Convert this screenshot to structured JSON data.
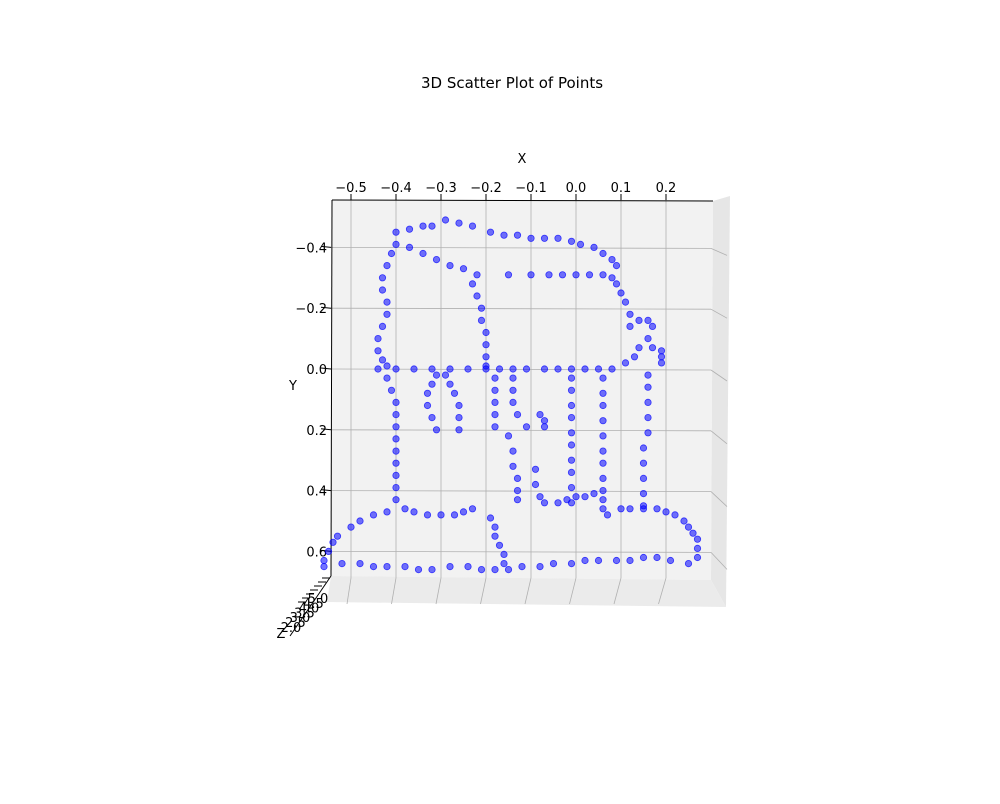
{
  "chart_data": {
    "type": "scatter",
    "title": "3D Scatter Plot of Points",
    "xlabel": "X",
    "ylabel": "Y",
    "zlabel": "Z",
    "x_ticks": [
      "−0.5",
      "−0.4",
      "−0.3",
      "−0.2",
      "−0.1",
      "0.0",
      "0.1",
      "0.2"
    ],
    "y_ticks": [
      "−0.4",
      "−0.2",
      "0.0",
      "0.2",
      "0.4",
      "0.6"
    ],
    "z_ticks": [
      "5.0",
      "4.5",
      "4.0",
      "3.5",
      "3.0",
      "2.5",
      "2.0"
    ],
    "xlim": [
      -0.55,
      0.3
    ],
    "ylim": [
      -0.5,
      0.68
    ],
    "zlim": [
      2.0,
      5.0
    ],
    "y_inverted": true,
    "grid": true,
    "point_color": "#0000ff",
    "series": [
      {
        "points": [
          [
            -0.4,
            -0.45
          ],
          [
            -0.37,
            -0.46
          ],
          [
            -0.34,
            -0.47
          ],
          [
            -0.32,
            -0.47
          ],
          [
            -0.29,
            -0.49
          ],
          [
            -0.26,
            -0.48
          ],
          [
            -0.23,
            -0.47
          ],
          [
            -0.19,
            -0.45
          ],
          [
            -0.16,
            -0.44
          ],
          [
            -0.13,
            -0.44
          ],
          [
            -0.1,
            -0.43
          ],
          [
            -0.07,
            -0.43
          ],
          [
            -0.04,
            -0.43
          ],
          [
            -0.01,
            -0.42
          ],
          [
            0.01,
            -0.41
          ],
          [
            0.04,
            -0.4
          ],
          [
            0.06,
            -0.38
          ],
          [
            0.08,
            -0.36
          ],
          [
            0.09,
            -0.34
          ],
          [
            -0.4,
            -0.41
          ],
          [
            -0.41,
            -0.38
          ],
          [
            -0.42,
            -0.34
          ],
          [
            -0.43,
            -0.3
          ],
          [
            -0.43,
            -0.26
          ],
          [
            -0.42,
            -0.22
          ],
          [
            -0.42,
            -0.18
          ],
          [
            -0.43,
            -0.14
          ],
          [
            -0.44,
            -0.1
          ],
          [
            -0.44,
            -0.06
          ],
          [
            -0.43,
            -0.03
          ],
          [
            -0.42,
            -0.01
          ],
          [
            -0.37,
            -0.4
          ],
          [
            -0.34,
            -0.38
          ],
          [
            -0.31,
            -0.36
          ],
          [
            -0.28,
            -0.34
          ],
          [
            -0.25,
            -0.33
          ],
          [
            -0.22,
            -0.31
          ],
          [
            -0.15,
            -0.31
          ],
          [
            -0.1,
            -0.31
          ],
          [
            -0.06,
            -0.31
          ],
          [
            -0.03,
            -0.31
          ],
          [
            0.0,
            -0.31
          ],
          [
            0.03,
            -0.31
          ],
          [
            0.06,
            -0.31
          ],
          [
            0.08,
            -0.3
          ],
          [
            -0.23,
            -0.28
          ],
          [
            -0.22,
            -0.24
          ],
          [
            -0.21,
            -0.2
          ],
          [
            -0.21,
            -0.16
          ],
          [
            -0.2,
            -0.12
          ],
          [
            -0.2,
            -0.08
          ],
          [
            -0.2,
            -0.04
          ],
          [
            -0.2,
            -0.01
          ],
          [
            0.09,
            -0.28
          ],
          [
            0.1,
            -0.25
          ],
          [
            0.11,
            -0.22
          ],
          [
            0.12,
            -0.18
          ],
          [
            0.12,
            -0.14
          ],
          [
            0.14,
            -0.16
          ],
          [
            0.16,
            -0.16
          ],
          [
            0.17,
            -0.14
          ],
          [
            0.16,
            -0.1
          ],
          [
            0.14,
            -0.07
          ],
          [
            0.17,
            -0.07
          ],
          [
            0.19,
            -0.06
          ],
          [
            0.19,
            -0.04
          ],
          [
            0.19,
            -0.02
          ],
          [
            -0.44,
            0.0
          ],
          [
            -0.4,
            0.0
          ],
          [
            -0.36,
            0.0
          ],
          [
            -0.32,
            0.0
          ],
          [
            -0.28,
            0.0
          ],
          [
            -0.24,
            0.0
          ],
          [
            -0.2,
            0.0
          ],
          [
            -0.17,
            0.0
          ],
          [
            -0.14,
            0.0
          ],
          [
            -0.11,
            0.0
          ],
          [
            -0.07,
            0.0
          ],
          [
            -0.04,
            0.0
          ],
          [
            -0.01,
            0.0
          ],
          [
            0.02,
            0.0
          ],
          [
            0.05,
            0.0
          ],
          [
            0.08,
            0.0
          ],
          [
            0.11,
            -0.02
          ],
          [
            0.13,
            -0.04
          ],
          [
            -0.42,
            0.03
          ],
          [
            -0.41,
            0.07
          ],
          [
            -0.4,
            0.11
          ],
          [
            -0.4,
            0.15
          ],
          [
            -0.4,
            0.19
          ],
          [
            -0.4,
            0.23
          ],
          [
            -0.4,
            0.27
          ],
          [
            -0.4,
            0.31
          ],
          [
            -0.4,
            0.35
          ],
          [
            -0.4,
            0.39
          ],
          [
            -0.4,
            0.43
          ],
          [
            -0.31,
            0.02
          ],
          [
            -0.32,
            0.05
          ],
          [
            -0.33,
            0.08
          ],
          [
            -0.33,
            0.12
          ],
          [
            -0.32,
            0.16
          ],
          [
            -0.31,
            0.2
          ],
          [
            -0.29,
            0.02
          ],
          [
            -0.28,
            0.05
          ],
          [
            -0.27,
            0.08
          ],
          [
            -0.26,
            0.12
          ],
          [
            -0.26,
            0.16
          ],
          [
            -0.26,
            0.2
          ],
          [
            -0.18,
            0.03
          ],
          [
            -0.18,
            0.07
          ],
          [
            -0.18,
            0.11
          ],
          [
            -0.18,
            0.15
          ],
          [
            -0.18,
            0.19
          ],
          [
            -0.15,
            0.22
          ],
          [
            -0.14,
            0.27
          ],
          [
            -0.14,
            0.32
          ],
          [
            -0.13,
            0.36
          ],
          [
            -0.13,
            0.4
          ],
          [
            -0.13,
            0.43
          ],
          [
            -0.14,
            0.03
          ],
          [
            -0.14,
            0.07
          ],
          [
            -0.14,
            0.11
          ],
          [
            -0.13,
            0.15
          ],
          [
            -0.11,
            0.19
          ],
          [
            -0.08,
            0.15
          ],
          [
            -0.07,
            0.17
          ],
          [
            -0.07,
            0.19
          ],
          [
            -0.09,
            0.33
          ],
          [
            -0.09,
            0.38
          ],
          [
            -0.08,
            0.42
          ],
          [
            -0.07,
            0.44
          ],
          [
            -0.04,
            0.44
          ],
          [
            -0.02,
            0.43
          ],
          [
            0.0,
            0.42
          ],
          [
            0.02,
            0.42
          ],
          [
            0.04,
            0.41
          ],
          [
            -0.01,
            0.03
          ],
          [
            -0.01,
            0.07
          ],
          [
            -0.01,
            0.12
          ],
          [
            -0.01,
            0.16
          ],
          [
            -0.01,
            0.21
          ],
          [
            -0.01,
            0.25
          ],
          [
            -0.01,
            0.3
          ],
          [
            -0.01,
            0.34
          ],
          [
            -0.01,
            0.39
          ],
          [
            -0.01,
            0.44
          ],
          [
            0.06,
            0.03
          ],
          [
            0.06,
            0.08
          ],
          [
            0.06,
            0.12
          ],
          [
            0.06,
            0.17
          ],
          [
            0.06,
            0.22
          ],
          [
            0.06,
            0.27
          ],
          [
            0.06,
            0.31
          ],
          [
            0.06,
            0.36
          ],
          [
            0.06,
            0.4
          ],
          [
            0.06,
            0.43
          ],
          [
            0.06,
            0.46
          ],
          [
            0.07,
            0.48
          ],
          [
            0.16,
            0.02
          ],
          [
            0.16,
            0.06
          ],
          [
            0.16,
            0.11
          ],
          [
            0.16,
            0.16
          ],
          [
            0.16,
            0.21
          ],
          [
            0.15,
            0.26
          ],
          [
            0.15,
            0.31
          ],
          [
            0.15,
            0.36
          ],
          [
            0.15,
            0.41
          ],
          [
            0.15,
            0.45
          ],
          [
            -0.42,
            0.47
          ],
          [
            -0.45,
            0.48
          ],
          [
            -0.48,
            0.5
          ],
          [
            -0.5,
            0.52
          ],
          [
            -0.53,
            0.55
          ],
          [
            -0.54,
            0.57
          ],
          [
            -0.55,
            0.6
          ],
          [
            -0.56,
            0.63
          ],
          [
            -0.38,
            0.46
          ],
          [
            -0.36,
            0.47
          ],
          [
            -0.33,
            0.48
          ],
          [
            -0.3,
            0.48
          ],
          [
            -0.27,
            0.48
          ],
          [
            -0.25,
            0.47
          ],
          [
            -0.23,
            0.46
          ],
          [
            -0.19,
            0.49
          ],
          [
            -0.18,
            0.52
          ],
          [
            -0.18,
            0.55
          ],
          [
            -0.17,
            0.58
          ],
          [
            -0.16,
            0.61
          ],
          [
            -0.16,
            0.64
          ],
          [
            0.1,
            0.46
          ],
          [
            0.12,
            0.46
          ],
          [
            0.15,
            0.46
          ],
          [
            0.18,
            0.46
          ],
          [
            0.2,
            0.47
          ],
          [
            0.22,
            0.48
          ],
          [
            0.24,
            0.5
          ],
          [
            0.25,
            0.52
          ],
          [
            0.26,
            0.54
          ],
          [
            0.27,
            0.56
          ],
          [
            0.27,
            0.59
          ],
          [
            0.27,
            0.62
          ],
          [
            0.25,
            0.64
          ],
          [
            -0.56,
            0.65
          ],
          [
            -0.52,
            0.64
          ],
          [
            -0.48,
            0.64
          ],
          [
            -0.45,
            0.65
          ],
          [
            -0.42,
            0.65
          ],
          [
            -0.38,
            0.65
          ],
          [
            -0.35,
            0.66
          ],
          [
            -0.32,
            0.66
          ],
          [
            -0.28,
            0.65
          ],
          [
            -0.24,
            0.65
          ],
          [
            -0.21,
            0.66
          ],
          [
            -0.18,
            0.66
          ],
          [
            -0.15,
            0.66
          ],
          [
            -0.12,
            0.65
          ],
          [
            -0.08,
            0.65
          ],
          [
            -0.05,
            0.64
          ],
          [
            -0.01,
            0.64
          ],
          [
            0.02,
            0.63
          ],
          [
            0.05,
            0.63
          ],
          [
            0.09,
            0.63
          ],
          [
            0.12,
            0.63
          ],
          [
            0.15,
            0.62
          ],
          [
            0.18,
            0.62
          ],
          [
            0.21,
            0.63
          ]
        ]
      }
    ]
  }
}
